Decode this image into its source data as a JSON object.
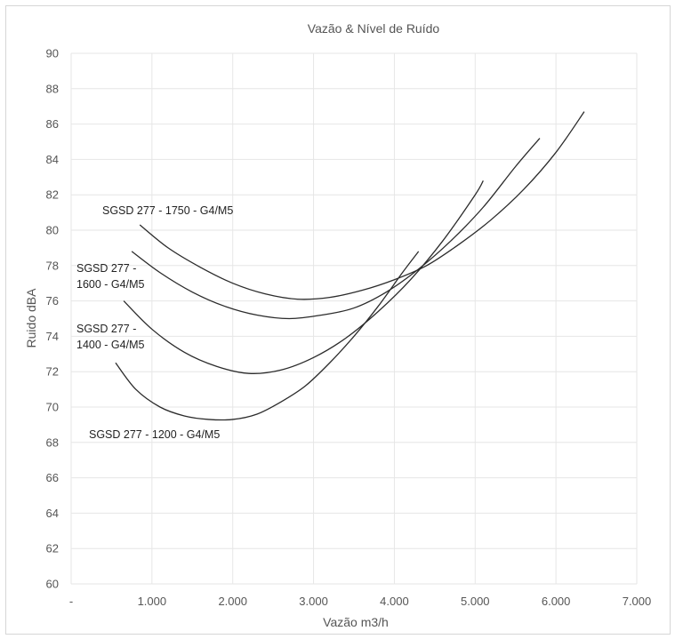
{
  "chart_data": {
    "type": "line",
    "title": "Vazão & Nível de Ruído",
    "xlabel": "Vazão m3/h",
    "ylabel": "Ruido dBA",
    "xlim": [
      0,
      7000
    ],
    "ylim": [
      60,
      90
    ],
    "x_ticks": [
      0,
      1000,
      2000,
      3000,
      4000,
      5000,
      6000,
      7000
    ],
    "x_tick_labels": [
      "-",
      "1.000",
      "2.000",
      "3.000",
      "4.000",
      "5.000",
      "6.000",
      "7.000"
    ],
    "y_ticks": [
      60,
      62,
      64,
      66,
      68,
      70,
      72,
      74,
      76,
      78,
      80,
      82,
      84,
      86,
      88,
      90
    ],
    "y_tick_labels": [
      "60",
      "62",
      "64",
      "66",
      "68",
      "70",
      "72",
      "74",
      "76",
      "78",
      "80",
      "82",
      "84",
      "86",
      "88",
      "90"
    ],
    "grid": true,
    "series": [
      {
        "name": "SGSD 277 - 1750 - G4/M5",
        "label_lines": [
          "SGSD 277 - 1750 - G4/M5"
        ],
        "x": [
          850,
          1200,
          1600,
          2000,
          2400,
          2800,
          3200,
          3600,
          4000,
          4400,
          4800,
          5200,
          5600,
          6000,
          6350
        ],
        "y": [
          80.3,
          79.0,
          77.9,
          77.0,
          76.4,
          76.1,
          76.2,
          76.6,
          77.2,
          78.0,
          79.2,
          80.6,
          82.3,
          84.4,
          86.7
        ]
      },
      {
        "name": "SGSD 277 - 1600 - G4/M5",
        "label_lines": [
          "SGSD 277 -",
          "1600 - G4/M5"
        ],
        "x": [
          750,
          1100,
          1500,
          1900,
          2300,
          2700,
          3100,
          3500,
          3900,
          4300,
          4700,
          5100,
          5500,
          5800
        ],
        "y": [
          78.8,
          77.6,
          76.5,
          75.7,
          75.2,
          75.0,
          75.2,
          75.6,
          76.5,
          77.8,
          79.4,
          81.3,
          83.6,
          85.2
        ]
      },
      {
        "name": "SGSD 277 - 1400 - G4/M5",
        "label_lines": [
          "SGSD 277 -",
          "1400 - G4/M5"
        ],
        "x": [
          650,
          1000,
          1400,
          1800,
          2200,
          2600,
          3000,
          3400,
          3800,
          4200,
          4600,
          5000,
          5100
        ],
        "y": [
          76.0,
          74.4,
          73.1,
          72.3,
          71.9,
          72.1,
          72.8,
          73.9,
          75.4,
          77.2,
          79.4,
          82.0,
          82.8
        ]
      },
      {
        "name": "SGSD 277 - 1200 - G4/M5",
        "label_lines": [
          "SGSD 277 - 1200 - G4/M5"
        ],
        "x": [
          550,
          800,
          1100,
          1400,
          1700,
          2000,
          2300,
          2600,
          2900,
          3200,
          3500,
          3800,
          4100,
          4300
        ],
        "y": [
          72.5,
          71.0,
          70.0,
          69.5,
          69.3,
          69.3,
          69.6,
          70.3,
          71.2,
          72.5,
          74.0,
          75.7,
          77.6,
          78.8
        ]
      }
    ]
  }
}
